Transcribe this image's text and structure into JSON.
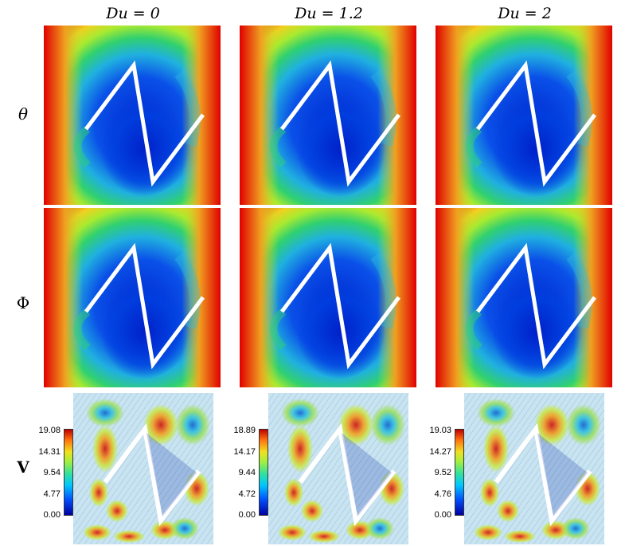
{
  "columns": [
    {
      "title": "Du = 0"
    },
    {
      "title": "Du = 1.2"
    },
    {
      "title": "Du = 2"
    }
  ],
  "rows": [
    {
      "label": "θ"
    },
    {
      "label": "Φ"
    },
    {
      "label": "V"
    }
  ],
  "velocity_colorbars": [
    {
      "ticks": [
        "19.08",
        "14.31",
        "9.54",
        "4.77",
        "0.00"
      ]
    },
    {
      "ticks": [
        "18.89",
        "14.17",
        "9.44",
        "4.72",
        "0.00"
      ]
    },
    {
      "ticks": [
        "19.03",
        "14.27",
        "9.52",
        "4.76",
        "0.00"
      ]
    }
  ],
  "colors": {
    "hot": "#e00000",
    "warm": "#f0e020",
    "mid": "#30d060",
    "cool": "#20b0e0",
    "cold": "#0028d0"
  }
}
